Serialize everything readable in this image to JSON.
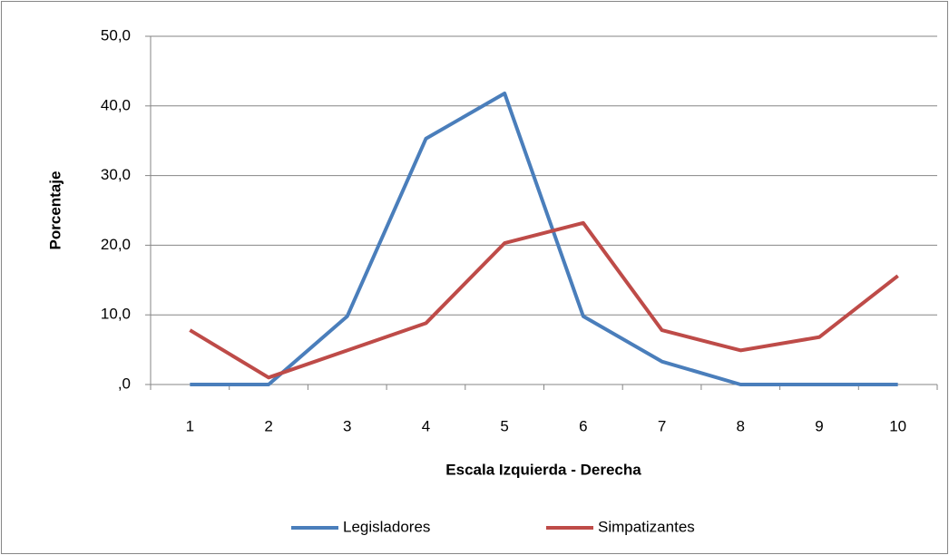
{
  "chart_data": {
    "type": "line",
    "y_label": "Porcentaje",
    "x_label": "Escala Izquierda - Derecha",
    "categories": [
      "1",
      "2",
      "3",
      "4",
      "5",
      "6",
      "7",
      "8",
      "9",
      "10"
    ],
    "series": [
      {
        "name": "Legisladores",
        "color": "#4a7ebb",
        "values": [
          0,
          0,
          9.8,
          35.3,
          41.8,
          9.8,
          3.3,
          0,
          0,
          0
        ]
      },
      {
        "name": "Simpatizantes",
        "color": "#be4b48",
        "values": [
          7.8,
          1.0,
          4.9,
          8.8,
          20.3,
          23.2,
          7.8,
          4.9,
          6.8,
          15.6
        ]
      }
    ],
    "ylim": [
      0,
      50
    ],
    "yticks": [
      {
        "value": 0,
        "label": ",0"
      },
      {
        "value": 10,
        "label": "10,0"
      },
      {
        "value": 20,
        "label": "20,0"
      },
      {
        "value": 30,
        "label": "30,0"
      },
      {
        "value": 40,
        "label": "40,0"
      },
      {
        "value": 50,
        "label": "50,0"
      }
    ],
    "grid": true,
    "legend": "bottom"
  }
}
